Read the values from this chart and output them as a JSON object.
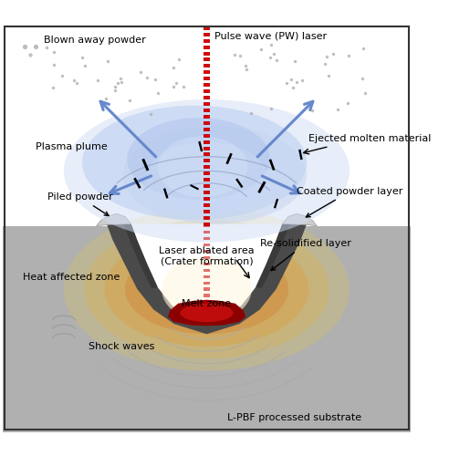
{
  "fig_width": 4.92,
  "fig_height": 5.0,
  "dpi": 100,
  "bg_color": "#ffffff",
  "labels": {
    "pulse_wave": "Pulse wave (PW) laser",
    "blown_powder": "Blown away powder",
    "plasma_plume": "Plasma plume",
    "ejected_molten": "Ejected molten material",
    "piled_powder": "Piled powder",
    "coated_powder": "Coated powder layer",
    "laser_ablated": "Laser ablated area\n(Crater formation)",
    "heat_affected": "Heat affected zone",
    "melt_zone": "Melt zone",
    "re_solidified": "Re-solidified layer",
    "shock_waves": "Shock waves",
    "substrate": "L-PBF processed substrate"
  },
  "colors": {
    "laser_red": "#cc0000",
    "arrow_blue": "#6688cc",
    "substrate_gray": "#b0b0b0",
    "dark_gray": "#555555",
    "melt_red": "#990000",
    "powder_gray": "#aaaaaa",
    "shock_gray": "#999999",
    "text_color": "#000000"
  }
}
